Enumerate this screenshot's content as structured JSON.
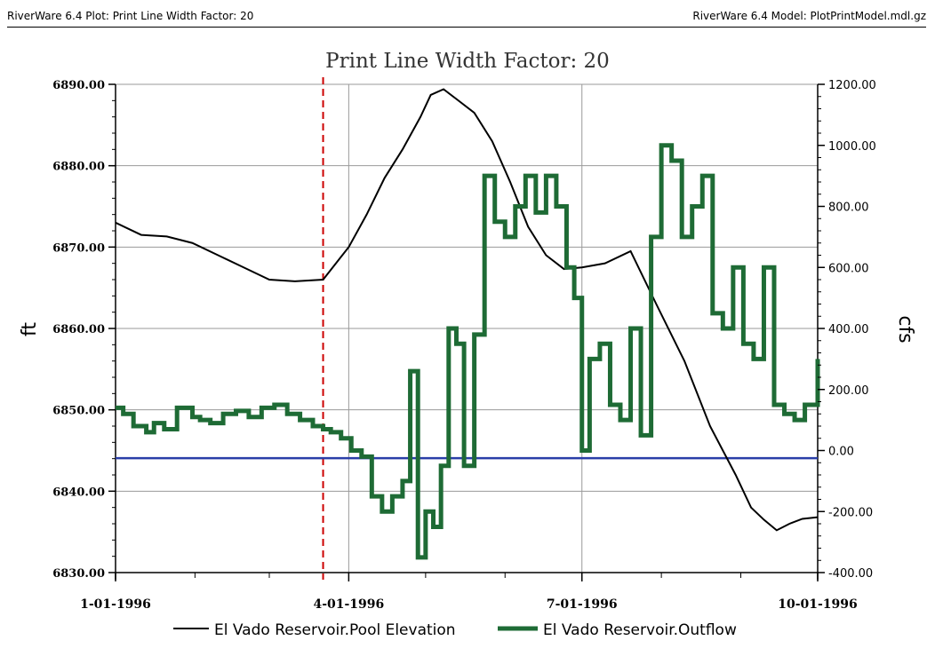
{
  "header": {
    "left": "RiverWare 6.4 Plot: Print Line Width Factor: 20",
    "right": "RiverWare 6.4 Model: PlotPrintModel.mdl.gz"
  },
  "chart_data": {
    "type": "line",
    "title": "Print Line Width Factor: 20",
    "ylabel_left": "ft",
    "ylabel_right": "cfs",
    "ylim_left": [
      6830,
      6890
    ],
    "ylim_right": [
      -400,
      1200
    ],
    "yticks_left": [
      "6890.00",
      "6880.00",
      "6870.00",
      "6860.00",
      "6850.00",
      "6840.00",
      "6830.00"
    ],
    "yticks_right": [
      "1200.00",
      "1000.00",
      "800.00",
      "600.00",
      "400.00",
      "200.00",
      "0.00",
      "-200.00",
      "-400.00"
    ],
    "xlim": [
      "1996-01-01",
      "1996-10-01"
    ],
    "xticks": [
      "1-01-1996",
      "4-01-1996",
      "7-01-1996",
      "10-01-1996"
    ],
    "grid": true,
    "legend_placement": "bottom",
    "reference_lines": [
      {
        "orientation": "vertical",
        "x": "1996-03-22",
        "color": "#cc0000",
        "style": "dashed"
      },
      {
        "orientation": "horizontal",
        "axis": "right",
        "y": -25,
        "color": "#2a3ea8",
        "style": "solid"
      }
    ],
    "series": [
      {
        "name": "El Vado Reservoir.Pool Elevation",
        "axis": "left",
        "color": "#000000",
        "x": [
          "1996-01-01",
          "1996-01-11",
          "1996-01-21",
          "1996-01-31",
          "1996-02-10",
          "1996-02-20",
          "1996-03-01",
          "1996-03-11",
          "1996-03-22",
          "1996-04-01",
          "1996-04-08",
          "1996-04-15",
          "1996-04-22",
          "1996-04-29",
          "1996-05-03",
          "1996-05-08",
          "1996-05-13",
          "1996-05-20",
          "1996-05-27",
          "1996-06-03",
          "1996-06-10",
          "1996-06-17",
          "1996-06-24",
          "1996-07-01",
          "1996-07-10",
          "1996-07-20",
          "1996-07-30",
          "1996-08-10",
          "1996-08-20",
          "1996-08-30",
          "1996-09-05",
          "1996-09-10",
          "1996-09-15",
          "1996-09-20",
          "1996-09-25",
          "1996-10-01"
        ],
        "values": [
          6873.0,
          6871.5,
          6871.3,
          6870.5,
          6869.0,
          6867.5,
          6866.0,
          6865.8,
          6866.0,
          6870.0,
          6874.0,
          6878.5,
          6882.0,
          6886.0,
          6888.7,
          6889.4,
          6888.2,
          6886.5,
          6883.0,
          6878.0,
          6872.5,
          6869.0,
          6867.3,
          6867.5,
          6868.0,
          6869.5,
          6863.0,
          6856.0,
          6848.0,
          6842.0,
          6838.0,
          6836.5,
          6835.2,
          6836.0,
          6836.6,
          6836.8
        ]
      },
      {
        "name": "El Vado Reservoir.Outflow",
        "axis": "right",
        "color": "#1e6b35",
        "x": [
          "1996-01-01",
          "1996-01-04",
          "1996-01-08",
          "1996-01-13",
          "1996-01-16",
          "1996-01-20",
          "1996-01-25",
          "1996-01-31",
          "1996-02-03",
          "1996-02-07",
          "1996-02-12",
          "1996-02-17",
          "1996-02-22",
          "1996-02-27",
          "1996-03-03",
          "1996-03-08",
          "1996-03-13",
          "1996-03-18",
          "1996-03-22",
          "1996-03-25",
          "1996-03-29",
          "1996-04-02",
          "1996-04-06",
          "1996-04-10",
          "1996-04-14",
          "1996-04-18",
          "1996-04-22",
          "1996-04-25",
          "1996-04-28",
          "1996-05-01",
          "1996-05-04",
          "1996-05-07",
          "1996-05-10",
          "1996-05-13",
          "1996-05-16",
          "1996-05-20",
          "1996-05-24",
          "1996-05-28",
          "1996-06-01",
          "1996-06-05",
          "1996-06-09",
          "1996-06-13",
          "1996-06-17",
          "1996-06-21",
          "1996-06-25",
          "1996-06-28",
          "1996-07-01",
          "1996-07-04",
          "1996-07-08",
          "1996-07-12",
          "1996-07-16",
          "1996-07-20",
          "1996-07-24",
          "1996-07-28",
          "1996-08-01",
          "1996-08-05",
          "1996-08-09",
          "1996-08-13",
          "1996-08-17",
          "1996-08-21",
          "1996-08-25",
          "1996-08-29",
          "1996-09-02",
          "1996-09-06",
          "1996-09-10",
          "1996-09-14",
          "1996-09-18",
          "1996-09-22",
          "1996-09-26",
          "1996-10-01"
        ],
        "values": [
          140,
          120,
          80,
          60,
          90,
          70,
          140,
          110,
          100,
          90,
          120,
          130,
          110,
          140,
          150,
          120,
          100,
          80,
          70,
          60,
          40,
          0,
          -20,
          -150,
          -200,
          -150,
          -100,
          260,
          -350,
          -200,
          -250,
          -50,
          400,
          350,
          -50,
          380,
          900,
          750,
          700,
          800,
          900,
          780,
          900,
          800,
          600,
          500,
          0,
          300,
          350,
          150,
          100,
          400,
          50,
          700,
          1000,
          950,
          700,
          800,
          900,
          450,
          400,
          600,
          350,
          300,
          600,
          150,
          120,
          100,
          150,
          300
        ]
      }
    ]
  }
}
